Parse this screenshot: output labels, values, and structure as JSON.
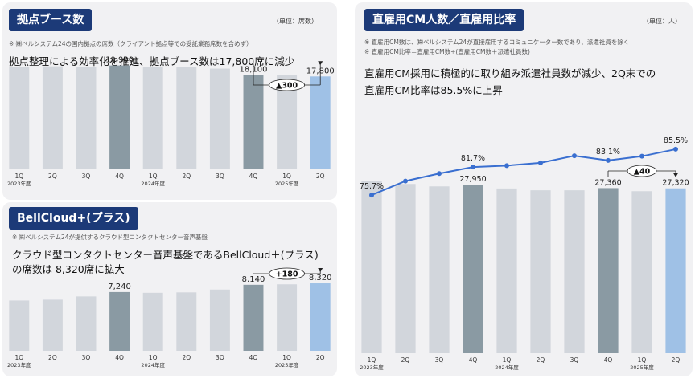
{
  "colors": {
    "gray_bar": "#d2d6dc",
    "highlight_4q": "#8a9aa3",
    "latest_bar": "#9fc1e6",
    "title_bg": "#1c3a78",
    "line": "#3a6fd0"
  },
  "panel1": {
    "title": "拠点ブース数",
    "unit": "（単位：席数）",
    "note": "※ ㈱ベルシステム24の国内拠点の席数（クライアント拠点等での受託業務席数を含めず）",
    "headline": "拠点整理による効率化を推進、拠点ブース数は17,800席に減少",
    "change_label": "▲300"
  },
  "panel2": {
    "title": "BellCloud+(プラス)",
    "note": "※ ㈱ベルシステム24が提供するクラウド型コンタクトセンター音声基盤",
    "headline_line1": "クラウド型コンタクトセンター音声基盤であるBellCloud＋(プラス)",
    "headline_line2": "の席数は 8,320席に拡大",
    "change_label": "+180"
  },
  "panel3": {
    "title": "直雇用CM人数／直雇用比率",
    "unit": "（単位：人）",
    "note1": "※ 直雇用CM数は、㈱ベルシステム24が直接雇用するコミュニケーター数であり、派遣社員を除く",
    "note2": "※ 直雇用CM比率＝直雇用CM数÷(直雇用CM数＋派遣社員数)",
    "headline_line1": "直雇用CM採用に積極的に取り組み派遣社員数が減少、2Q末での",
    "headline_line2": "直雇用CM比率は85.5%に上昇",
    "change_label": "▲40"
  },
  "chart_data": [
    {
      "type": "bar",
      "title": "拠点ブース数",
      "categories": [
        "1Q",
        "2Q",
        "3Q",
        "4Q",
        "1Q",
        "2Q",
        "3Q",
        "4Q",
        "1Q",
        "2Q"
      ],
      "year_labels": [
        "2023年度",
        "2024年度",
        "2025年度"
      ],
      "values": [
        19600,
        19750,
        19700,
        19900,
        19650,
        19600,
        19300,
        18100,
        18050,
        17800
      ],
      "data_labels": [
        "",
        "",
        "",
        "19,900",
        "",
        "",
        "",
        "18,100",
        "",
        "17,800"
      ],
      "ylim": [
        0,
        24000
      ]
    },
    {
      "type": "bar",
      "title": "BellCloud+(プラス)",
      "categories": [
        "1Q",
        "2Q",
        "3Q",
        "4Q",
        "1Q",
        "2Q",
        "3Q",
        "4Q",
        "1Q",
        "2Q"
      ],
      "year_labels": [
        "2023年度",
        "2024年度",
        "2025年度"
      ],
      "values": [
        6200,
        6300,
        6700,
        7240,
        7150,
        7200,
        7550,
        8140,
        8200,
        8320
      ],
      "data_labels": [
        "",
        "",
        "",
        "7,240",
        "",
        "",
        "",
        "8,140",
        "",
        "8,320"
      ],
      "ylim": [
        0,
        10600
      ]
    },
    {
      "type": "bar",
      "title": "直雇用CM人数",
      "categories": [
        "1Q",
        "2Q",
        "3Q",
        "4Q",
        "1Q",
        "2Q",
        "3Q",
        "4Q",
        "1Q",
        "2Q"
      ],
      "year_labels": [
        "2023年度",
        "2024年度",
        "2025年度"
      ],
      "values": [
        28500,
        28050,
        27650,
        27950,
        27300,
        27000,
        27000,
        27360,
        26850,
        27320
      ],
      "data_labels": [
        "",
        "",
        "",
        "27,950",
        "",
        "",
        "",
        "27,360",
        "",
        "27,320"
      ],
      "ylim": [
        0,
        37000
      ]
    },
    {
      "type": "line",
      "title": "直雇用CM比率",
      "categories": [
        "1Q",
        "2Q",
        "3Q",
        "4Q",
        "1Q",
        "2Q",
        "3Q",
        "4Q",
        "1Q",
        "2Q"
      ],
      "values": [
        75.7,
        78.7,
        80.3,
        81.7,
        82.0,
        82.6,
        84.1,
        83.1,
        84.0,
        85.5
      ],
      "data_labels": [
        "75.7%",
        "",
        "",
        "81.7%",
        "",
        "",
        "",
        "83.1%",
        "",
        "85.5%"
      ],
      "ylim": [
        50,
        110
      ]
    }
  ]
}
